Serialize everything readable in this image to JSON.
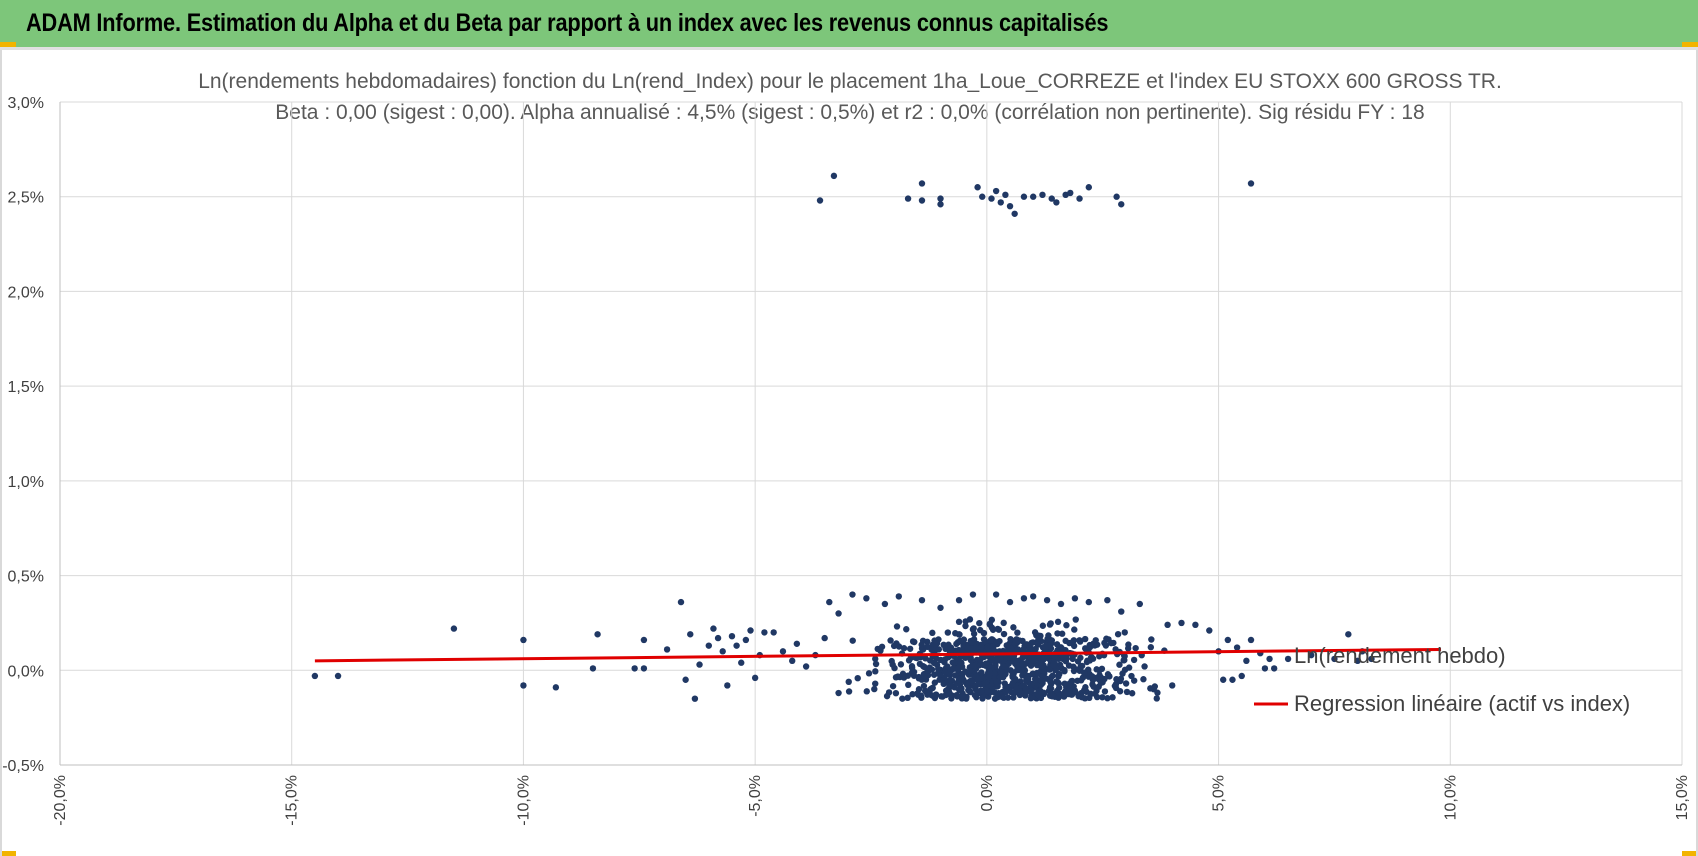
{
  "header": {
    "title": "ADAM Informe. Estimation du Alpha et du Beta par rapport à un index avec les revenus connus capitalisés"
  },
  "colors": {
    "header_bg": "#7dc67a",
    "accent": "#f2b400",
    "points": "#203864",
    "regression": "#e00000",
    "grid": "#d9d9d9"
  },
  "chart_data": {
    "type": "scatter",
    "title": "Ln(rendements hebdomadaires) fonction du Ln(rend_Index) pour le placement 1ha_Loue_CORREZE et l'index EU STOXX 600 GROSS TR.",
    "subtitle": "Beta : 0,00 (sigest : 0,00).  Alpha annualisé : 4,5% (sigest : 0,5%) et r2 : 0,0% (corrélation non pertinente). Sig résidu FY : 18",
    "xlabel": "",
    "ylabel": "",
    "xlim": [
      -20,
      15
    ],
    "ylim": [
      -0.5,
      3.0
    ],
    "x_ticks": [
      -20,
      -15,
      -10,
      -5,
      0,
      5,
      10,
      15
    ],
    "x_tick_labels": [
      "-20,0%",
      "-15,0%",
      "-10,0%",
      "-5,0%",
      "0,0%",
      "5,0%",
      "10,0%",
      "15,0%"
    ],
    "y_ticks": [
      -0.5,
      0,
      0.5,
      1.0,
      1.5,
      2.0,
      2.5,
      3.0
    ],
    "y_tick_labels": [
      "-0,5%",
      "0,0%",
      "0,5%",
      "1,0%",
      "1,5%",
      "2,0%",
      "2,5%",
      "3,0%"
    ],
    "grid": true,
    "legend_position": "right",
    "series": [
      {
        "name": "Ln(rendement hebdo)",
        "kind": "scatter",
        "color": "#203864",
        "points": [
          [
            -14.5,
            -0.03
          ],
          [
            -14.0,
            -0.03
          ],
          [
            -11.5,
            0.22
          ],
          [
            -10.0,
            0.16
          ],
          [
            -10.0,
            -0.08
          ],
          [
            -9.3,
            -0.09
          ],
          [
            -8.4,
            0.19
          ],
          [
            -8.5,
            0.01
          ],
          [
            -7.6,
            0.01
          ],
          [
            -7.4,
            0.16
          ],
          [
            -7.4,
            0.01
          ],
          [
            -6.9,
            0.11
          ],
          [
            -6.6,
            0.36
          ],
          [
            -6.5,
            -0.05
          ],
          [
            -6.4,
            0.19
          ],
          [
            -6.3,
            -0.15
          ],
          [
            -6.2,
            0.03
          ],
          [
            -6.0,
            0.13
          ],
          [
            -5.9,
            0.22
          ],
          [
            -5.8,
            0.17
          ],
          [
            -5.7,
            0.1
          ],
          [
            -5.6,
            -0.08
          ],
          [
            -5.5,
            0.18
          ],
          [
            -5.4,
            0.13
          ],
          [
            -5.3,
            0.04
          ],
          [
            -5.2,
            0.16
          ],
          [
            -5.1,
            0.21
          ],
          [
            -5.0,
            -0.04
          ],
          [
            -4.9,
            0.08
          ],
          [
            -4.8,
            0.2
          ],
          [
            -4.6,
            0.2
          ],
          [
            -4.4,
            0.1
          ],
          [
            -4.2,
            0.05
          ],
          [
            -4.1,
            0.14
          ],
          [
            -3.9,
            0.02
          ],
          [
            -3.7,
            0.08
          ],
          [
            -3.5,
            0.17
          ],
          [
            -3.2,
            -0.12
          ],
          [
            -3.4,
            0.36
          ],
          [
            -3.2,
            0.3
          ],
          [
            -2.9,
            0.4
          ],
          [
            -2.6,
            0.38
          ],
          [
            -2.2,
            0.35
          ],
          [
            -1.9,
            0.39
          ],
          [
            -1.4,
            0.37
          ],
          [
            -1.0,
            0.33
          ],
          [
            -0.6,
            0.37
          ],
          [
            -0.3,
            0.4
          ],
          [
            0.2,
            0.4
          ],
          [
            0.5,
            0.36
          ],
          [
            0.8,
            0.38
          ],
          [
            1.0,
            0.39
          ],
          [
            1.3,
            0.37
          ],
          [
            1.6,
            0.35
          ],
          [
            1.9,
            0.38
          ],
          [
            2.2,
            0.36
          ],
          [
            2.6,
            0.37
          ],
          [
            2.9,
            0.31
          ],
          [
            3.3,
            0.35
          ],
          [
            3.9,
            0.24
          ],
          [
            4.2,
            0.25
          ],
          [
            4.5,
            0.24
          ],
          [
            4.8,
            0.21
          ],
          [
            5.0,
            0.1
          ],
          [
            5.2,
            0.16
          ],
          [
            5.4,
            0.12
          ],
          [
            5.1,
            -0.05
          ],
          [
            5.3,
            -0.05
          ],
          [
            5.5,
            -0.03
          ],
          [
            5.6,
            0.05
          ],
          [
            5.7,
            0.16
          ],
          [
            5.9,
            0.09
          ],
          [
            6.0,
            0.01
          ],
          [
            6.1,
            0.06
          ],
          [
            6.2,
            0.01
          ],
          [
            6.5,
            0.06
          ],
          [
            7.0,
            0.08
          ],
          [
            7.5,
            0.06
          ],
          [
            7.8,
            0.19
          ],
          [
            8.0,
            0.05
          ],
          [
            8.1,
            0.1
          ],
          [
            8.3,
            0.06
          ],
          [
            3.6,
            -0.1
          ],
          [
            4.0,
            -0.08
          ],
          [
            -3.6,
            2.48
          ],
          [
            -3.3,
            2.61
          ],
          [
            -1.7,
            2.49
          ],
          [
            -1.4,
            2.57
          ],
          [
            -1.4,
            2.48
          ],
          [
            -1.0,
            2.49
          ],
          [
            -1.0,
            2.46
          ],
          [
            -0.2,
            2.55
          ],
          [
            -0.1,
            2.5
          ],
          [
            0.1,
            2.49
          ],
          [
            0.2,
            2.53
          ],
          [
            0.3,
            2.47
          ],
          [
            0.4,
            2.51
          ],
          [
            0.5,
            2.45
          ],
          [
            0.6,
            2.41
          ],
          [
            0.8,
            2.5
          ],
          [
            1.0,
            2.5
          ],
          [
            1.2,
            2.51
          ],
          [
            1.4,
            2.49
          ],
          [
            1.5,
            2.47
          ],
          [
            1.7,
            2.51
          ],
          [
            1.8,
            2.52
          ],
          [
            2.0,
            2.49
          ],
          [
            2.2,
            2.55
          ],
          [
            2.8,
            2.5
          ],
          [
            2.9,
            2.46
          ],
          [
            5.7,
            2.57
          ]
        ]
      },
      {
        "name": "Regression linéaire (actif vs index)",
        "kind": "line",
        "color": "#e00000",
        "x": [
          -14.5,
          9.8
        ],
        "y": [
          0.05,
          0.11
        ]
      }
    ]
  }
}
